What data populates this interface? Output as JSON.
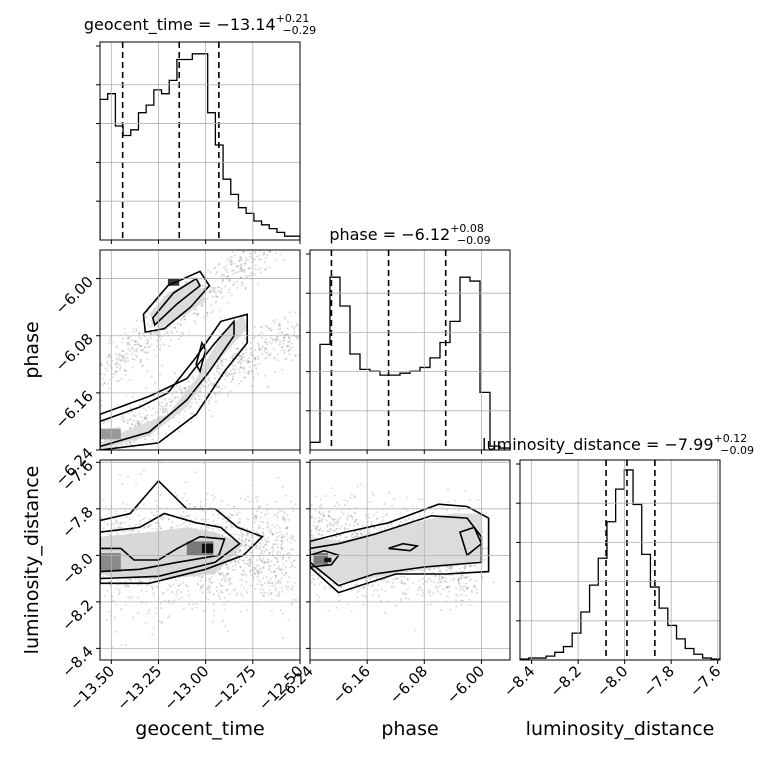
{
  "chart_data": {
    "type": "corner",
    "parameters": [
      "geocent_time",
      "phase",
      "luminosity_distance"
    ],
    "axis_labels": [
      "geocent_time",
      "phase",
      "luminosity_distance"
    ],
    "ranges": {
      "geocent_time": [
        -13.56,
        -12.5
      ],
      "phase": [
        -6.24,
        -5.96
      ],
      "luminosity_distance": [
        -8.45,
        -7.59
      ]
    },
    "ticks": {
      "geocent_time": [
        -13.5,
        -13.25,
        -13.0,
        -12.75,
        -12.5
      ],
      "phase": [
        -6.24,
        -6.16,
        -6.08,
        -6.0
      ],
      "luminosity_distance": [
        -8.4,
        -8.2,
        -8.0,
        -7.8,
        -7.6
      ]
    },
    "tick_labels": {
      "geocent_time": [
        "−13.50",
        "−13.25",
        "−13.00",
        "−12.75",
        "−12.50"
      ],
      "phase": [
        "−6.24",
        "−6.16",
        "−6.08",
        "−6.00"
      ],
      "luminosity_distance": [
        "−8.4",
        "−8.2",
        "−8.0",
        "−7.8",
        "−7.6"
      ]
    },
    "titles": [
      {
        "param": "geocent_time",
        "prefix": "geocent_time = −13.14",
        "sup": "+0.21",
        "sub": "−0.29"
      },
      {
        "param": "phase",
        "prefix": "phase = −6.12",
        "sup": "+0.08",
        "sub": "−0.09"
      },
      {
        "param": "luminosity_distance",
        "prefix": "luminosity_distance = −7.99",
        "sup": "+0.12",
        "sub": "−0.09"
      }
    ],
    "quantiles": {
      "geocent_time": [
        -13.44,
        -13.14,
        -12.93
      ],
      "phase": [
        -6.21,
        -6.13,
        -6.05
      ],
      "luminosity_distance": [
        -8.08,
        -7.99,
        -7.87
      ]
    },
    "histograms": {
      "geocent_time": [
        0.74,
        0.77,
        0.6,
        0.55,
        0.58,
        0.67,
        0.71,
        0.79,
        0.77,
        0.84,
        0.95,
        0.95,
        0.98,
        0.98,
        0.67,
        0.5,
        0.32,
        0.24,
        0.17,
        0.14,
        0.1,
        0.08,
        0.06,
        0.04,
        0.02,
        0.02
      ],
      "phase": [
        0.04,
        0.55,
        0.9,
        0.75,
        0.5,
        0.42,
        0.41,
        0.39,
        0.39,
        0.4,
        0.41,
        0.43,
        0.48,
        0.56,
        0.67,
        0.9,
        0.88,
        0.3,
        0.02,
        0.01
      ],
      "luminosity_distance": [
        0.005,
        0.01,
        0.01,
        0.02,
        0.04,
        0.07,
        0.14,
        0.25,
        0.39,
        0.53,
        0.72,
        0.89,
        0.99,
        0.81,
        0.55,
        0.38,
        0.27,
        0.18,
        0.11,
        0.06,
        0.03,
        0.01,
        0.005
      ]
    },
    "scatter_2d": {
      "phase_vs_geocent_time": "dense diagonal scatter with two lobes",
      "luminosity_distance_vs_geocent_time": "broad scatter centred near -8.0",
      "luminosity_distance_vs_phase": "scatter with concentration at low phase"
    },
    "grid": true
  }
}
